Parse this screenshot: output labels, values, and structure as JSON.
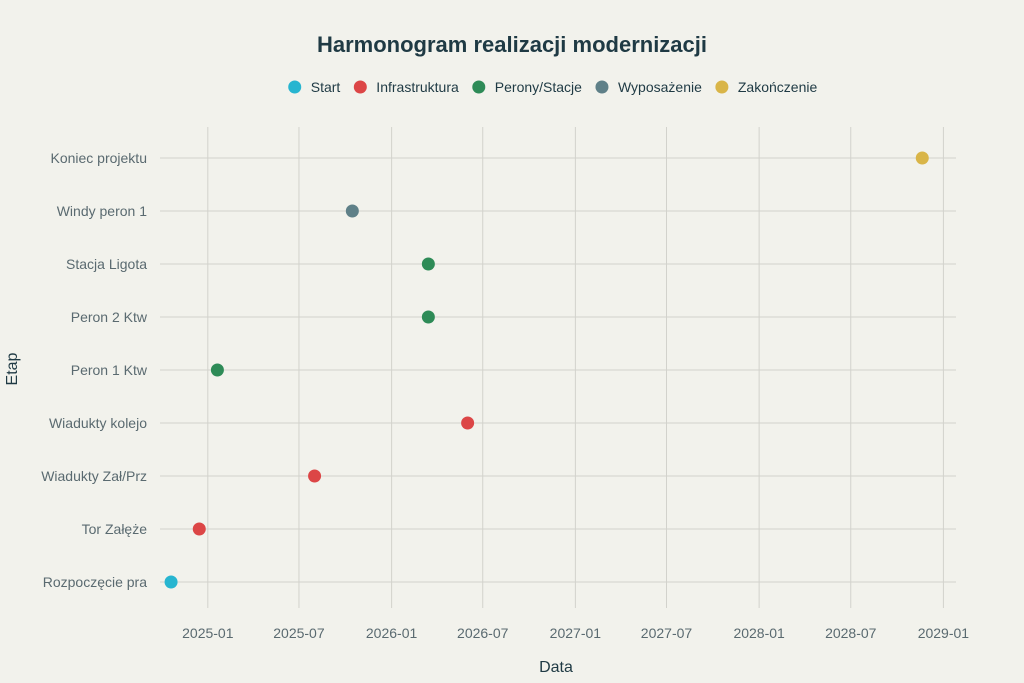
{
  "chart_data": {
    "type": "scatter",
    "title": "Harmonogram realizacji modernizacji",
    "xlabel": "Data",
    "ylabel": "Etap",
    "x_ticks": [
      "2025-01",
      "2025-07",
      "2026-01",
      "2026-07",
      "2027-01",
      "2027-07",
      "2028-01",
      "2028-07",
      "2029-01"
    ],
    "xlim": [
      "2024-09-28",
      "2029-01-26"
    ],
    "categories": [
      "Rozpoczęcie pra",
      "Tor Załęże",
      "Wiadukty Zał/Prz",
      "Wiadukty kolejo",
      "Peron 1 Ktw",
      "Peron 2 Ktw",
      "Stacja Ligota",
      "Windy peron 1",
      "Koniec projektu"
    ],
    "legend_position": "top",
    "grid": true,
    "series": [
      {
        "name": "Start",
        "color": "#27b5d0",
        "points": [
          {
            "x": "2024-10-20",
            "y": "Rozpoczęcie pra"
          }
        ]
      },
      {
        "name": "Infrastruktura",
        "color": "#dc4646",
        "points": [
          {
            "x": "2024-12-15",
            "y": "Tor Załęże"
          },
          {
            "x": "2025-08-01",
            "y": "Wiadukty Zał/Prz"
          },
          {
            "x": "2026-06-01",
            "y": "Wiadukty kolejo"
          }
        ]
      },
      {
        "name": "Perony/Stacje",
        "color": "#2e8b57",
        "points": [
          {
            "x": "2025-01-20",
            "y": "Peron 1 Ktw"
          },
          {
            "x": "2026-03-15",
            "y": "Peron 2 Ktw"
          },
          {
            "x": "2026-03-15",
            "y": "Stacja Ligota"
          }
        ]
      },
      {
        "name": "Wyposażenie",
        "color": "#5f8088",
        "points": [
          {
            "x": "2025-10-15",
            "y": "Windy peron 1"
          }
        ]
      },
      {
        "name": "Zakończenie",
        "color": "#d9b548",
        "points": [
          {
            "x": "2028-11-20",
            "y": "Koniec projektu"
          }
        ]
      }
    ]
  }
}
